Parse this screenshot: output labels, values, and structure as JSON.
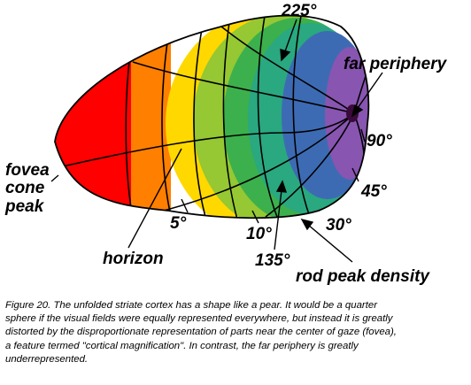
{
  "diagram": {
    "labels": {
      "deg_225": "225°",
      "far_periphery": "far periphery",
      "deg_90": "90°",
      "deg_45": "45°",
      "deg_30": "30°",
      "fovea_line1": "fovea",
      "fovea_line2": "cone",
      "fovea_line3": "peak",
      "deg_5": "5°",
      "deg_10": "10°",
      "horizon": "horizon",
      "deg_135": "135°",
      "rod_peak_density": "rod peak density"
    },
    "band_colors": [
      "#ff0000",
      "#ff7f00",
      "#ffd800",
      "#95c832",
      "#3cb04c",
      "#2aa880",
      "#3d6bb3",
      "#8855b0"
    ]
  },
  "caption": {
    "line1": "Figure 20. The unfolded striate cortex has a shape like a pear. It would be a quarter",
    "line2": "sphere if the visual fields were equally represented everywhere, but instead it is greatly",
    "line3": "distorted by the disproportionate representation of parts near the center of gaze (fovea),",
    "line4": "a feature termed \"cortical magnification\". In contrast, the far periphery is greatly",
    "line5": "underrepresented."
  }
}
